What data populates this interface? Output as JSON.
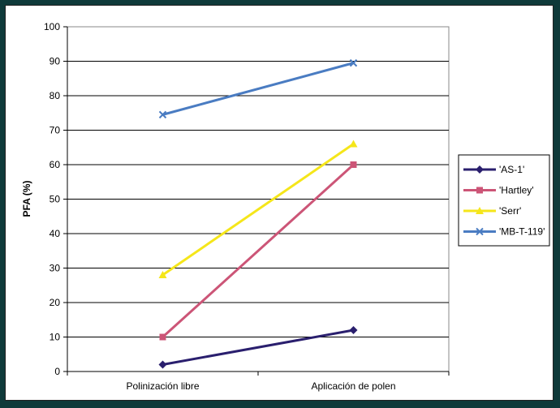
{
  "chart_data": {
    "type": "line",
    "title": "",
    "xlabel": "",
    "ylabel": "PFA (%)",
    "categories": [
      "Polinización libre",
      "Aplicación de polen"
    ],
    "ylim": [
      0,
      100
    ],
    "yticks": [
      0,
      10,
      20,
      30,
      40,
      50,
      60,
      70,
      80,
      90,
      100
    ],
    "grid": true,
    "legend_position": "right",
    "series": [
      {
        "name": "'AS-1'",
        "values": [
          2,
          12
        ],
        "color": "#2a1f6e",
        "marker": "diamond"
      },
      {
        "name": "'Hartley'",
        "values": [
          10,
          60
        ],
        "color": "#cc5577",
        "marker": "square"
      },
      {
        "name": "'Serr'",
        "values": [
          28,
          66
        ],
        "color": "#f5e61a",
        "marker": "triangle"
      },
      {
        "name": "'MB-T-119'",
        "values": [
          74.5,
          89.5
        ],
        "color": "#4a7cc2",
        "marker": "x"
      }
    ]
  }
}
